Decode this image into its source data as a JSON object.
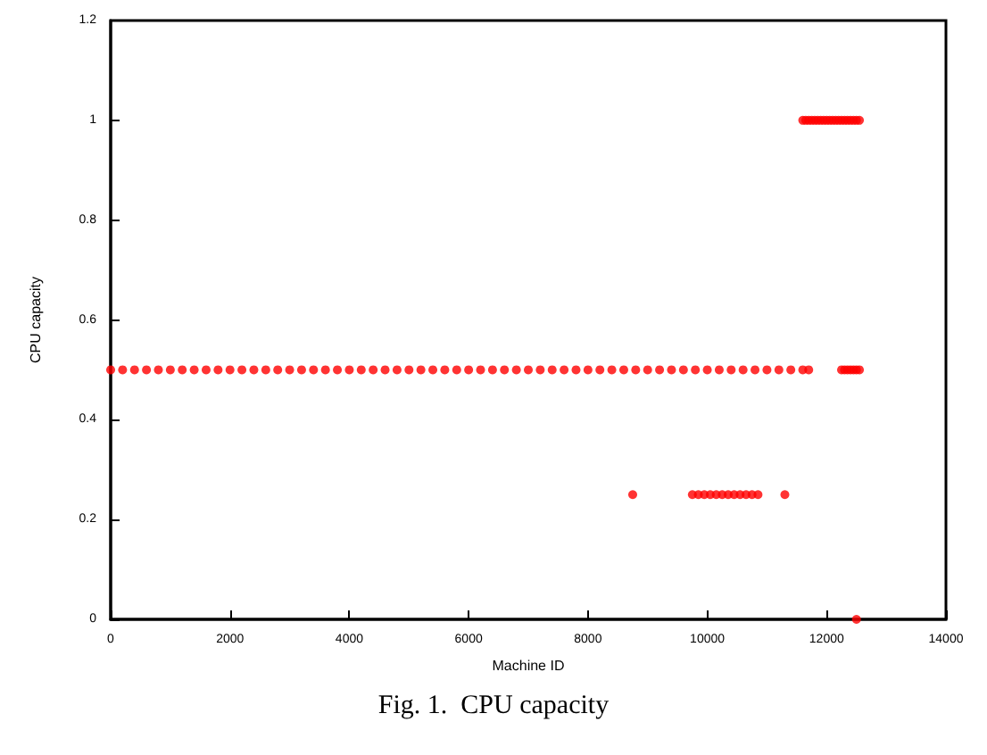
{
  "chart_data": {
    "type": "scatter",
    "xlabel": "Machine ID",
    "ylabel": "CPU capacity",
    "annotations": [
      "Fig. 1.  CPU capacity"
    ],
    "xlim": [
      0,
      14000
    ],
    "xticks": [
      0,
      2000,
      4000,
      6000,
      8000,
      10000,
      12000,
      14000
    ],
    "ylim": [
      0,
      1.2
    ],
    "yticks": [
      0,
      0.2,
      0.4,
      0.6,
      0.8,
      1,
      1.2
    ],
    "grid": false,
    "marker": "circle",
    "series": [
      {
        "color": "#ff0000",
        "x": [
          0,
          200,
          400,
          600,
          800,
          1000,
          1200,
          1400,
          1600,
          1800,
          2000,
          2200,
          2400,
          2600,
          2800,
          3000,
          3200,
          3400,
          3600,
          3800,
          4000,
          4200,
          4400,
          4600,
          4800,
          5000,
          5200,
          5400,
          5600,
          5800,
          6000,
          6200,
          6400,
          6600,
          6800,
          7000,
          7200,
          7400,
          7600,
          7800,
          8000,
          8200,
          8400,
          8600,
          8800,
          9000,
          9200,
          9400,
          9600,
          9800,
          10000,
          10200,
          10400,
          10600,
          10800,
          11000,
          11200,
          11400,
          11600,
          11700,
          12250,
          12300,
          12350,
          12400,
          12450,
          12500,
          12550,
          11600,
          11650,
          11700,
          11750,
          11800,
          11850,
          11900,
          11950,
          12000,
          12050,
          12100,
          12150,
          12200,
          12250,
          12300,
          12350,
          12400,
          12450,
          12500,
          12550,
          8750,
          9750,
          9850,
          9950,
          10050,
          10150,
          10250,
          10350,
          10450,
          10550,
          10650,
          10750,
          10850,
          11300,
          12500
        ],
        "values": [
          0.5,
          0.5,
          0.5,
          0.5,
          0.5,
          0.5,
          0.5,
          0.5,
          0.5,
          0.5,
          0.5,
          0.5,
          0.5,
          0.5,
          0.5,
          0.5,
          0.5,
          0.5,
          0.5,
          0.5,
          0.5,
          0.5,
          0.5,
          0.5,
          0.5,
          0.5,
          0.5,
          0.5,
          0.5,
          0.5,
          0.5,
          0.5,
          0.5,
          0.5,
          0.5,
          0.5,
          0.5,
          0.5,
          0.5,
          0.5,
          0.5,
          0.5,
          0.5,
          0.5,
          0.5,
          0.5,
          0.5,
          0.5,
          0.5,
          0.5,
          0.5,
          0.5,
          0.5,
          0.5,
          0.5,
          0.5,
          0.5,
          0.5,
          0.5,
          0.5,
          0.5,
          0.5,
          0.5,
          0.5,
          0.5,
          0.5,
          0.5,
          1,
          1,
          1,
          1,
          1,
          1,
          1,
          1,
          1,
          1,
          1,
          1,
          1,
          1,
          1,
          1,
          1,
          1,
          1,
          1,
          0.25,
          0.25,
          0.25,
          0.25,
          0.25,
          0.25,
          0.25,
          0.25,
          0.25,
          0.25,
          0.25,
          0.25,
          0.25,
          0.25,
          0
        ]
      }
    ]
  }
}
